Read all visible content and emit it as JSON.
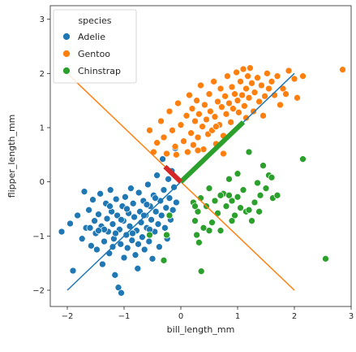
{
  "chart_data": {
    "type": "scatter",
    "xlabel": "bill_length_mm",
    "ylabel": "flipper_length_mm",
    "xlim": [
      -2.3,
      3.0
    ],
    "ylim": [
      -2.3,
      3.25
    ],
    "xticks": [
      -2,
      -1,
      0,
      1,
      2,
      3
    ],
    "yticks": [
      -2,
      -1,
      0,
      1,
      2,
      3
    ],
    "grid": false,
    "legend": {
      "title": "species",
      "placement": "top-left"
    },
    "series": [
      {
        "name": "Adelie",
        "color": "#1f77b4",
        "points": [
          [
            -2.1,
            -0.92
          ],
          [
            -1.9,
            -1.64
          ],
          [
            -1.95,
            -0.77
          ],
          [
            -1.82,
            -0.62
          ],
          [
            -1.74,
            -1.05
          ],
          [
            -1.7,
            -0.18
          ],
          [
            -1.67,
            -0.85
          ],
          [
            -1.62,
            -0.52
          ],
          [
            -1.58,
            -1.18
          ],
          [
            -1.55,
            -0.33
          ],
          [
            -1.52,
            -0.72
          ],
          [
            -1.5,
            -0.95
          ],
          [
            -1.48,
            -1.25
          ],
          [
            -1.45,
            -0.6
          ],
          [
            -1.42,
            -0.22
          ],
          [
            -1.4,
            -0.82
          ],
          [
            -1.38,
            -1.52
          ],
          [
            -1.35,
            -1.1
          ],
          [
            -1.32,
            -0.4
          ],
          [
            -1.3,
            -0.68
          ],
          [
            -1.28,
            -0.92
          ],
          [
            -1.26,
            -1.32
          ],
          [
            -1.24,
            -0.15
          ],
          [
            -1.22,
            -0.55
          ],
          [
            -1.2,
            -0.78
          ],
          [
            -1.18,
            -1.05
          ],
          [
            -1.16,
            -1.72
          ],
          [
            -1.14,
            -0.32
          ],
          [
            -1.12,
            -0.62
          ],
          [
            -1.1,
            -1.95
          ],
          [
            -1.08,
            -0.88
          ],
          [
            -1.06,
            -1.15
          ],
          [
            -1.05,
            -2.05
          ],
          [
            -1.03,
            -0.45
          ],
          [
            -1.01,
            -0.72
          ],
          [
            -1.0,
            -1.4
          ],
          [
            -0.98,
            -0.28
          ],
          [
            -0.96,
            -0.98
          ],
          [
            -0.94,
            -1.22
          ],
          [
            -0.92,
            -0.58
          ],
          [
            -0.9,
            -0.82
          ],
          [
            -0.88,
            -0.12
          ],
          [
            -0.86,
            -1.08
          ],
          [
            -0.84,
            -0.4
          ],
          [
            -0.82,
            -0.65
          ],
          [
            -0.8,
            -1.35
          ],
          [
            -0.78,
            -0.9
          ],
          [
            -0.76,
            -1.6
          ],
          [
            -0.74,
            -0.2
          ],
          [
            -0.72,
            -0.55
          ],
          [
            -0.7,
            -0.75
          ],
          [
            -0.68,
            -1.02
          ],
          [
            -0.66,
            -0.35
          ],
          [
            -0.64,
            -1.25
          ],
          [
            -0.62,
            -0.62
          ],
          [
            -0.6,
            -0.85
          ],
          [
            -0.58,
            -0.05
          ],
          [
            -0.56,
            -1.1
          ],
          [
            -0.54,
            -0.45
          ],
          [
            -0.52,
            -0.7
          ],
          [
            -0.5,
            -1.42
          ],
          [
            -0.48,
            -0.25
          ],
          [
            -0.46,
            -0.92
          ],
          [
            -0.44,
            -0.55
          ],
          [
            -0.42,
            0.12
          ],
          [
            -0.4,
            -0.78
          ],
          [
            -0.38,
            -1.2
          ],
          [
            -0.36,
            -0.35
          ],
          [
            -0.34,
            -0.62
          ],
          [
            -0.32,
            0.42
          ],
          [
            -0.3,
            -0.15
          ],
          [
            -0.28,
            -0.85
          ],
          [
            -0.26,
            -0.48
          ],
          [
            -0.24,
            -1.05
          ],
          [
            -0.22,
            0.05
          ],
          [
            -0.2,
            -0.3
          ],
          [
            -0.18,
            -0.7
          ],
          [
            -0.16,
            0.2
          ],
          [
            -0.14,
            -0.52
          ],
          [
            -0.12,
            -0.1
          ],
          [
            -0.1,
            0.62
          ],
          [
            -0.08,
            -0.38
          ],
          [
            -1.35,
            -0.88
          ],
          [
            -1.25,
            -0.45
          ],
          [
            -1.15,
            -0.95
          ],
          [
            -0.95,
            -0.5
          ],
          [
            -0.85,
            -0.95
          ],
          [
            -0.65,
            -0.62
          ],
          [
            -0.55,
            -0.88
          ],
          [
            -0.45,
            -0.3
          ],
          [
            -1.6,
            -0.85
          ],
          [
            -1.45,
            -0.9
          ],
          [
            -1.2,
            -1.2
          ],
          [
            -1.05,
            -0.7
          ],
          [
            -0.75,
            -1.15
          ],
          [
            -0.6,
            -0.42
          ]
        ]
      },
      {
        "name": "Gentoo",
        "color": "#ff7f0e",
        "points": [
          [
            -0.55,
            0.95
          ],
          [
            -0.48,
            0.55
          ],
          [
            -0.42,
            0.72
          ],
          [
            -0.35,
            1.12
          ],
          [
            -0.3,
            0.82
          ],
          [
            -0.25,
            0.52
          ],
          [
            -0.2,
            1.3
          ],
          [
            -0.15,
            0.95
          ],
          [
            -0.1,
            0.65
          ],
          [
            -0.05,
            1.45
          ],
          [
            0.0,
            1.05
          ],
          [
            0.05,
            0.75
          ],
          [
            0.1,
            1.22
          ],
          [
            0.12,
            0.55
          ],
          [
            0.15,
            1.6
          ],
          [
            0.18,
            0.9
          ],
          [
            0.2,
            1.35
          ],
          [
            0.22,
            0.68
          ],
          [
            0.25,
            1.12
          ],
          [
            0.28,
            1.5
          ],
          [
            0.3,
            0.82
          ],
          [
            0.32,
            1.25
          ],
          [
            0.35,
            1.78
          ],
          [
            0.38,
            1.02
          ],
          [
            0.4,
            0.6
          ],
          [
            0.42,
            1.42
          ],
          [
            0.45,
            1.15
          ],
          [
            0.48,
            0.88
          ],
          [
            0.5,
            1.62
          ],
          [
            0.52,
            1.3
          ],
          [
            0.55,
            0.95
          ],
          [
            0.58,
            1.85
          ],
          [
            0.6,
            1.2
          ],
          [
            0.62,
            0.7
          ],
          [
            0.65,
            1.48
          ],
          [
            0.68,
            1.05
          ],
          [
            0.7,
            1.72
          ],
          [
            0.72,
            1.38
          ],
          [
            0.75,
            0.85
          ],
          [
            0.78,
            1.58
          ],
          [
            0.8,
            1.25
          ],
          [
            0.82,
            1.95
          ],
          [
            0.85,
            1.45
          ],
          [
            0.88,
            1.1
          ],
          [
            0.9,
            1.75
          ],
          [
            0.92,
            1.35
          ],
          [
            0.95,
            1.62
          ],
          [
            0.98,
            2.02
          ],
          [
            1.0,
            1.5
          ],
          [
            1.02,
            1.28
          ],
          [
            1.05,
            1.85
          ],
          [
            1.08,
            1.6
          ],
          [
            1.1,
            2.08
          ],
          [
            1.12,
            1.4
          ],
          [
            1.15,
            1.72
          ],
          [
            1.18,
            1.95
          ],
          [
            1.2,
            1.55
          ],
          [
            1.22,
            2.1
          ],
          [
            1.25,
            1.82
          ],
          [
            1.28,
            1.3
          ],
          [
            1.3,
            1.65
          ],
          [
            1.35,
            1.92
          ],
          [
            1.38,
            1.48
          ],
          [
            1.42,
            1.78
          ],
          [
            1.48,
            1.58
          ],
          [
            1.52,
            2.0
          ],
          [
            1.55,
            1.72
          ],
          [
            1.6,
            1.85
          ],
          [
            1.65,
            1.6
          ],
          [
            1.7,
            1.95
          ],
          [
            1.75,
            1.42
          ],
          [
            1.8,
            1.72
          ],
          [
            1.85,
            1.62
          ],
          [
            1.9,
            2.05
          ],
          [
            2.0,
            1.9
          ],
          [
            2.05,
            1.55
          ],
          [
            2.15,
            1.95
          ],
          [
            1.15,
            1.18
          ],
          [
            0.75,
            0.52
          ],
          [
            0.3,
            0.58
          ],
          [
            -0.08,
            0.5
          ],
          [
            1.45,
            1.22
          ],
          [
            2.85,
            2.07
          ],
          [
            0.62,
            1.02
          ]
        ]
      },
      {
        "name": "Chinstrap",
        "color": "#2ca02c",
        "points": [
          [
            -0.55,
            -0.98
          ],
          [
            -0.3,
            -1.45
          ],
          [
            -0.25,
            -0.98
          ],
          [
            -0.2,
            -0.62
          ],
          [
            0.22,
            -0.38
          ],
          [
            0.25,
            -0.72
          ],
          [
            0.28,
            -0.98
          ],
          [
            0.3,
            -0.55
          ],
          [
            0.32,
            -1.12
          ],
          [
            0.35,
            -0.3
          ],
          [
            0.36,
            -1.65
          ],
          [
            0.4,
            -0.85
          ],
          [
            0.45,
            -0.45
          ],
          [
            0.5,
            -0.12
          ],
          [
            0.55,
            -0.75
          ],
          [
            0.6,
            -0.35
          ],
          [
            0.65,
            -0.58
          ],
          [
            0.7,
            -0.9
          ],
          [
            0.75,
            -0.22
          ],
          [
            0.8,
            -0.45
          ],
          [
            0.85,
            0.05
          ],
          [
            0.9,
            -0.35
          ],
          [
            0.95,
            -0.62
          ],
          [
            1.0,
            -0.28
          ],
          [
            1.05,
            -0.48
          ],
          [
            1.1,
            -0.15
          ],
          [
            1.15,
            -0.55
          ],
          [
            1.2,
            0.55
          ],
          [
            1.25,
            -0.72
          ],
          [
            1.3,
            -0.38
          ],
          [
            1.35,
            -0.02
          ],
          [
            1.4,
            -0.25
          ],
          [
            1.45,
            0.3
          ],
          [
            1.5,
            -0.12
          ],
          [
            1.55,
            0.12
          ],
          [
            1.62,
            -0.3
          ],
          [
            1.7,
            -0.25
          ],
          [
            2.15,
            0.42
          ],
          [
            2.55,
            -1.42
          ],
          [
            0.25,
            -0.45
          ],
          [
            0.5,
            -0.9
          ],
          [
            0.85,
            -0.25
          ],
          [
            1.0,
            0.15
          ],
          [
            1.2,
            -0.52
          ],
          [
            1.38,
            -0.55
          ],
          [
            0.7,
            -0.25
          ],
          [
            0.9,
            -0.72
          ],
          [
            1.6,
            0.08
          ]
        ]
      }
    ],
    "lines": [
      {
        "color": "#1f77b4",
        "from": [
          -2,
          -2
        ],
        "to": [
          2,
          2
        ],
        "width": "thin"
      },
      {
        "color": "#ff7f0e",
        "from": [
          -2,
          2
        ],
        "to": [
          2,
          -2
        ],
        "width": "thin"
      },
      {
        "color": "#2ca02c",
        "from": [
          0,
          0
        ],
        "to": [
          1.1,
          1.1
        ],
        "width": "thick"
      },
      {
        "color": "#d62728",
        "from": [
          0,
          0
        ],
        "to": [
          -0.28,
          0.28
        ],
        "width": "thick"
      }
    ]
  }
}
